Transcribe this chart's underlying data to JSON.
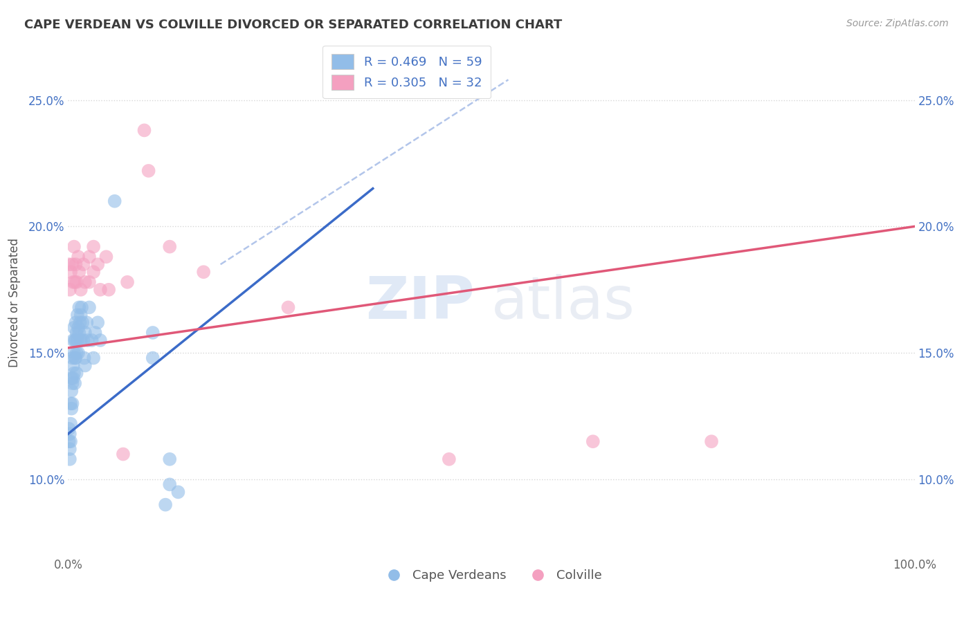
{
  "title": "CAPE VERDEAN VS COLVILLE DIVORCED OR SEPARATED CORRELATION CHART",
  "source": "Source: ZipAtlas.com",
  "ylabel": "Divorced or Separated",
  "xlim": [
    0.0,
    1.0
  ],
  "ylim": [
    0.07,
    0.27
  ],
  "y_tick_labels": [
    "10.0%",
    "15.0%",
    "20.0%",
    "25.0%"
  ],
  "y_tick_values": [
    0.1,
    0.15,
    0.2,
    0.25
  ],
  "legend_label1": "Cape Verdeans",
  "legend_label2": "Colville",
  "R1": "0.469",
  "N1": "59",
  "R2": "0.305",
  "N2": "32",
  "color1": "#92BDE8",
  "color2": "#F4A0C0",
  "line_color1": "#3B6BC8",
  "line_color2": "#E05878",
  "diag_color": "#AABFE8",
  "title_color": "#3C3C3C",
  "legend_text_color": "#4472C4",
  "watermark_zip": "ZIP",
  "watermark_atlas": "atlas",
  "blue_scatter": [
    [
      0.001,
      0.12
    ],
    [
      0.001,
      0.115
    ],
    [
      0.002,
      0.118
    ],
    [
      0.002,
      0.112
    ],
    [
      0.002,
      0.108
    ],
    [
      0.003,
      0.13
    ],
    [
      0.003,
      0.122
    ],
    [
      0.003,
      0.115
    ],
    [
      0.004,
      0.14
    ],
    [
      0.004,
      0.135
    ],
    [
      0.004,
      0.128
    ],
    [
      0.005,
      0.148
    ],
    [
      0.005,
      0.138
    ],
    [
      0.005,
      0.13
    ],
    [
      0.006,
      0.155
    ],
    [
      0.006,
      0.145
    ],
    [
      0.006,
      0.14
    ],
    [
      0.007,
      0.16
    ],
    [
      0.007,
      0.15
    ],
    [
      0.007,
      0.142
    ],
    [
      0.008,
      0.155
    ],
    [
      0.008,
      0.148
    ],
    [
      0.008,
      0.138
    ],
    [
      0.009,
      0.162
    ],
    [
      0.009,
      0.155
    ],
    [
      0.009,
      0.148
    ],
    [
      0.01,
      0.158
    ],
    [
      0.01,
      0.15
    ],
    [
      0.01,
      0.142
    ],
    [
      0.011,
      0.165
    ],
    [
      0.011,
      0.155
    ],
    [
      0.012,
      0.16
    ],
    [
      0.012,
      0.15
    ],
    [
      0.013,
      0.168
    ],
    [
      0.013,
      0.158
    ],
    [
      0.014,
      0.162
    ],
    [
      0.015,
      0.165
    ],
    [
      0.015,
      0.155
    ],
    [
      0.016,
      0.168
    ],
    [
      0.017,
      0.162
    ],
    [
      0.018,
      0.155
    ],
    [
      0.019,
      0.148
    ],
    [
      0.02,
      0.158
    ],
    [
      0.02,
      0.145
    ],
    [
      0.022,
      0.162
    ],
    [
      0.023,
      0.155
    ],
    [
      0.025,
      0.168
    ],
    [
      0.028,
      0.155
    ],
    [
      0.03,
      0.148
    ],
    [
      0.032,
      0.158
    ],
    [
      0.035,
      0.162
    ],
    [
      0.038,
      0.155
    ],
    [
      0.055,
      0.21
    ],
    [
      0.1,
      0.158
    ],
    [
      0.1,
      0.148
    ],
    [
      0.115,
      0.09
    ],
    [
      0.12,
      0.108
    ],
    [
      0.12,
      0.098
    ],
    [
      0.13,
      0.095
    ]
  ],
  "pink_scatter": [
    [
      0.001,
      0.185
    ],
    [
      0.002,
      0.175
    ],
    [
      0.003,
      0.182
    ],
    [
      0.005,
      0.185
    ],
    [
      0.006,
      0.178
    ],
    [
      0.007,
      0.192
    ],
    [
      0.008,
      0.178
    ],
    [
      0.009,
      0.185
    ],
    [
      0.01,
      0.178
    ],
    [
      0.012,
      0.188
    ],
    [
      0.013,
      0.182
    ],
    [
      0.015,
      0.175
    ],
    [
      0.018,
      0.185
    ],
    [
      0.02,
      0.178
    ],
    [
      0.025,
      0.188
    ],
    [
      0.025,
      0.178
    ],
    [
      0.03,
      0.192
    ],
    [
      0.03,
      0.182
    ],
    [
      0.035,
      0.185
    ],
    [
      0.038,
      0.175
    ],
    [
      0.045,
      0.188
    ],
    [
      0.048,
      0.175
    ],
    [
      0.065,
      0.11
    ],
    [
      0.07,
      0.178
    ],
    [
      0.09,
      0.238
    ],
    [
      0.095,
      0.222
    ],
    [
      0.12,
      0.192
    ],
    [
      0.16,
      0.182
    ],
    [
      0.26,
      0.168
    ],
    [
      0.45,
      0.108
    ],
    [
      0.62,
      0.115
    ],
    [
      0.76,
      0.115
    ]
  ],
  "blue_line_x": [
    0.0,
    0.36
  ],
  "blue_line_y": [
    0.118,
    0.215
  ],
  "pink_line_x": [
    0.0,
    1.0
  ],
  "pink_line_y": [
    0.152,
    0.2
  ],
  "diag_line_x": [
    0.18,
    0.52
  ],
  "diag_line_y": [
    0.185,
    0.258
  ]
}
